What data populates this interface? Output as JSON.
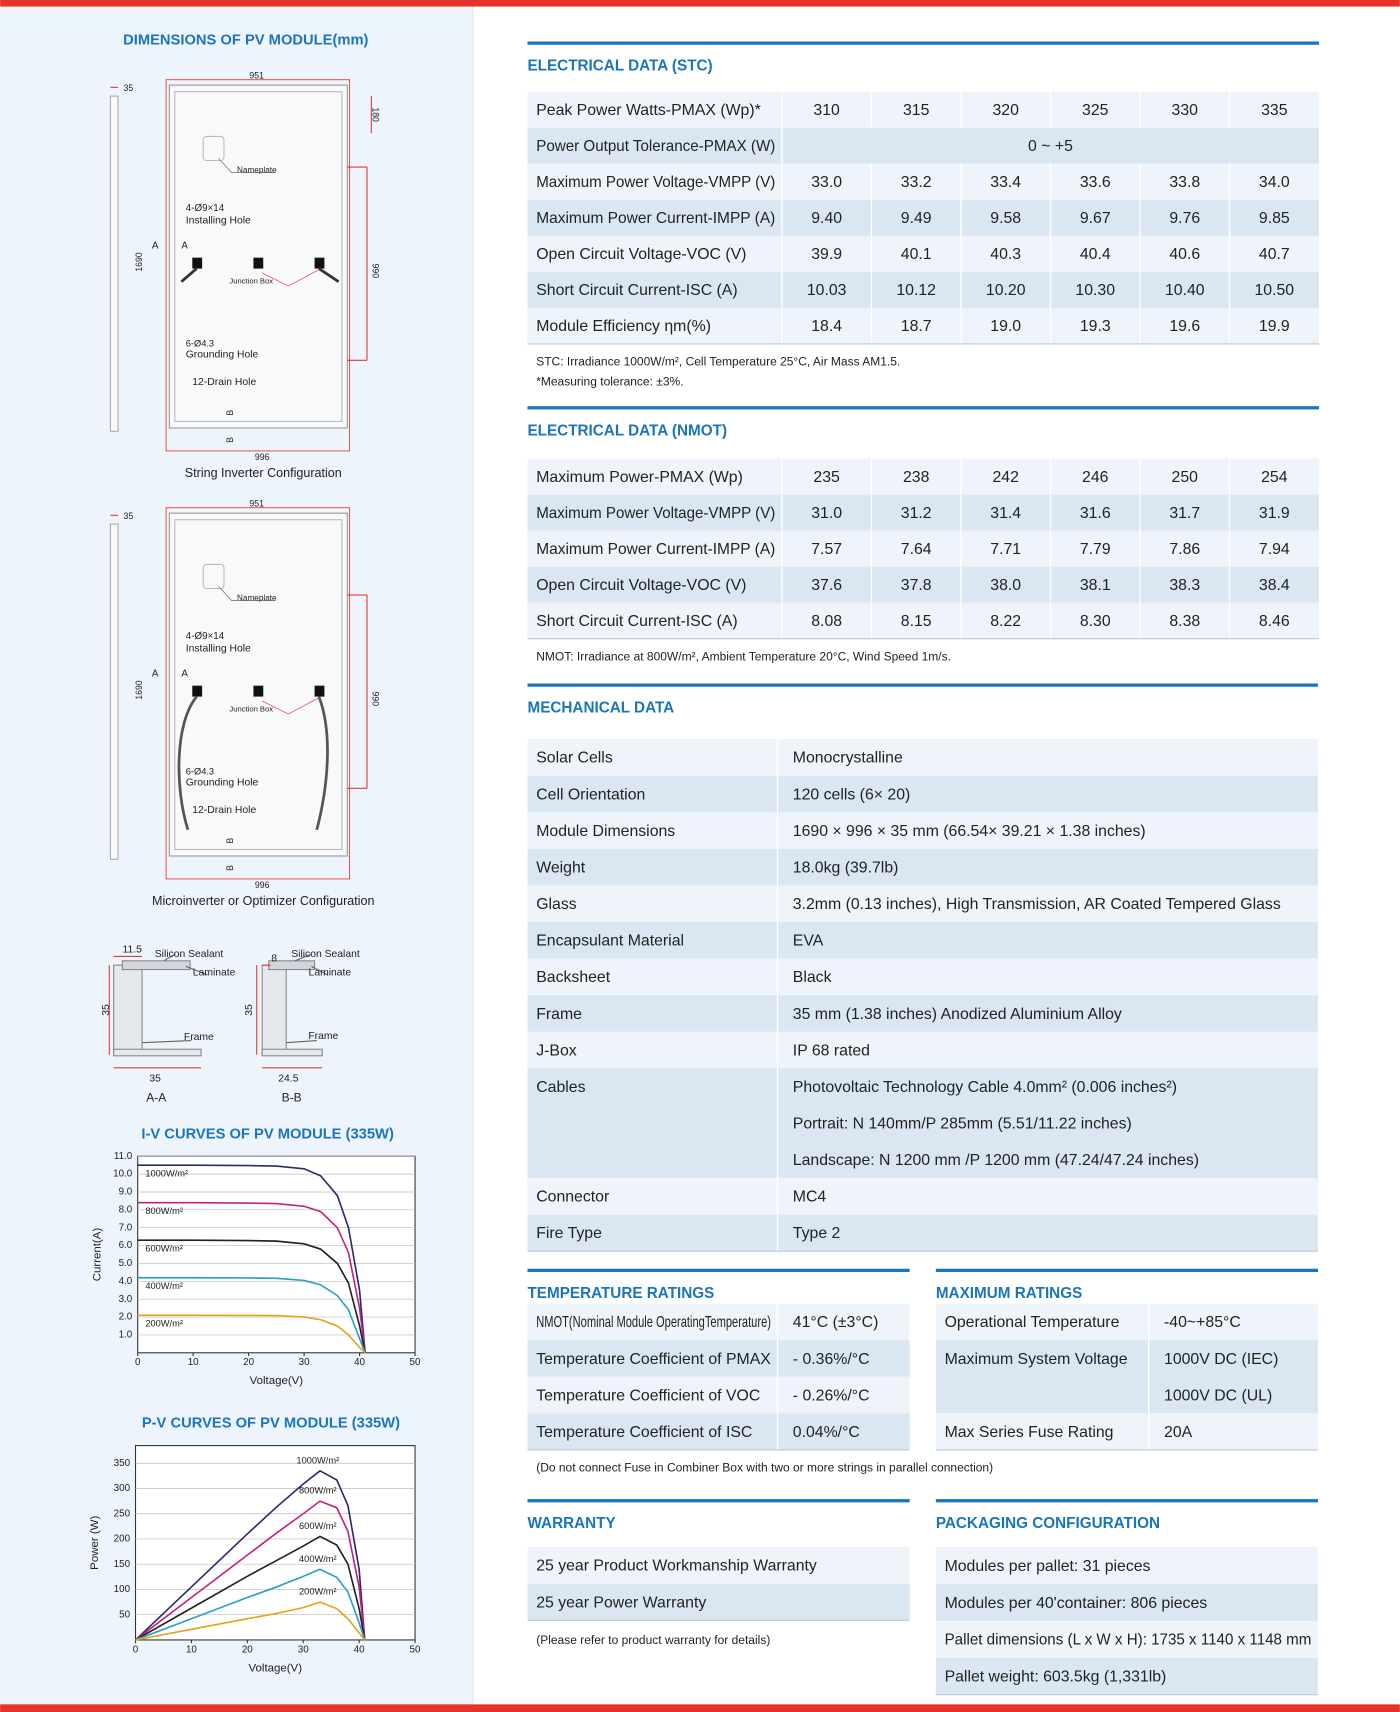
{
  "left_title": "DIMENSIONS OF PV MODULE(mm)",
  "diagrams": [
    {
      "thickness": "35",
      "width_top": "951",
      "nameplate_dim": "180",
      "nameplate": "Nameplate",
      "holes": "4-Ø9×14",
      "holes_name": "Installing  Hole",
      "section_a1": "A",
      "section_a2": "A",
      "length": "1690",
      "hole_pitch": "990",
      "junction_box": "Junction Box",
      "ground": "6-Ø4.3",
      "ground_name": "Grounding Hole",
      "drain": "12-Drain Hole",
      "section_b1": "B",
      "section_b2": "B",
      "width_bottom": "996",
      "caption": "String Inverter Configuration"
    },
    {
      "thickness": "35",
      "width_top": "951",
      "nameplate": "Nameplate",
      "holes": "4-Ø9×14",
      "holes_name": "Installing  Hole",
      "section_a1": "A",
      "section_a2": "A",
      "length": "1690",
      "hole_pitch": "990",
      "junction_box": "Junction Box",
      "ground": "6-Ø4.3",
      "ground_name": "Grounding Hole",
      "drain": "12-Drain Hole",
      "section_b1": "B",
      "section_b2": "B",
      "width_bottom": "996",
      "caption": "Microinverter or Optimizer Configuration"
    }
  ],
  "sections": [
    {
      "width": "11.5",
      "sealant": "Silicon Sealant",
      "laminate": "Laminate",
      "height": "35",
      "frame": "Frame",
      "flange": "35",
      "caption": "A-A"
    },
    {
      "width": "8",
      "sealant": "Silicon Sealant",
      "laminate": "Laminate",
      "height": "35",
      "frame": "Frame",
      "flange": "24.5",
      "caption": "B-B"
    }
  ],
  "chart_data": [
    {
      "type": "line",
      "title": "I-V CURVES OF PV MODULE (335W)",
      "x_label": "Voltage(V)",
      "y_label": "Current(A)",
      "x": [
        0,
        10,
        20,
        25,
        30,
        33,
        36,
        38,
        40,
        41
      ],
      "xlim": [
        0,
        50
      ],
      "xticks": [
        0,
        10,
        20,
        30,
        40,
        50
      ],
      "ylim": [
        0,
        11
      ],
      "yticks": [
        {
          "value": 1,
          "label": "1.0"
        },
        {
          "value": 2,
          "label": "2.0"
        },
        {
          "value": 3,
          "label": "3.0"
        },
        {
          "value": 4,
          "label": "4.0"
        },
        {
          "value": 5,
          "label": "5.0"
        },
        {
          "value": 6,
          "label": "6.0"
        },
        {
          "value": 7,
          "label": "7.0"
        },
        {
          "value": 8,
          "label": "8.0"
        },
        {
          "value": 9,
          "label": "9.0"
        },
        {
          "value": 10,
          "label": "10.0"
        },
        {
          "value": 11,
          "label": "11.0"
        }
      ],
      "grid": "y",
      "series": [
        {
          "name": "1000W/m²",
          "color": "#2b2a6e",
          "values": [
            10.5,
            10.5,
            10.48,
            10.45,
            10.3,
            9.9,
            8.8,
            7.0,
            3.5,
            0
          ]
        },
        {
          "name": "800W/m²",
          "color": "#c2237f",
          "values": [
            8.4,
            8.4,
            8.38,
            8.35,
            8.2,
            7.9,
            7.0,
            5.6,
            2.5,
            0
          ]
        },
        {
          "name": "600W/m²",
          "color": "#222222",
          "values": [
            6.3,
            6.3,
            6.28,
            6.25,
            6.1,
            5.8,
            5.0,
            3.9,
            1.5,
            0
          ]
        },
        {
          "name": "400W/m²",
          "color": "#2aa0c8",
          "values": [
            4.2,
            4.2,
            4.19,
            4.17,
            4.05,
            3.8,
            3.2,
            2.4,
            0.8,
            0
          ]
        },
        {
          "name": "200W/m²",
          "color": "#e8a21a",
          "values": [
            2.1,
            2.1,
            2.09,
            2.08,
            2.0,
            1.85,
            1.5,
            1.0,
            0.3,
            0
          ]
        }
      ]
    },
    {
      "type": "line",
      "title": "P-V CURVES OF PV MODULE (335W)",
      "x_label": "Voltage(V)",
      "y_label": "Power (W)",
      "x": [
        0,
        10,
        20,
        25,
        30,
        33,
        36,
        38,
        40,
        41
      ],
      "xlim": [
        0,
        50
      ],
      "xticks": [
        0,
        10,
        20,
        30,
        40,
        50
      ],
      "ylim": [
        0,
        385
      ],
      "yticks": [
        50,
        100,
        150,
        200,
        250,
        300,
        350
      ],
      "grid": "y",
      "series": [
        {
          "name": "1000W/m²",
          "color": "#2b2a6e",
          "values": [
            0,
            105,
            210,
            261,
            309,
            335,
            317,
            266,
            140,
            0
          ]
        },
        {
          "name": "800W/m²",
          "color": "#c2237f",
          "values": [
            0,
            84,
            168,
            210,
            250,
            275,
            262,
            215,
            105,
            0
          ]
        },
        {
          "name": "600W/m²",
          "color": "#222222",
          "values": [
            0,
            63,
            126,
            156,
            186,
            205,
            188,
            150,
            62,
            0
          ]
        },
        {
          "name": "400W/m²",
          "color": "#2aa0c8",
          "values": [
            0,
            42,
            84,
            104,
            126,
            140,
            124,
            95,
            34,
            0
          ]
        },
        {
          "name": "200W/m²",
          "color": "#e8a21a",
          "values": [
            0,
            21,
            42,
            52,
            64,
            75,
            62,
            42,
            14,
            0
          ]
        }
      ]
    }
  ],
  "stc": {
    "title": "ELECTRICAL DATA (STC)",
    "rows": [
      [
        "Peak Power Watts-PMAX (Wp)*",
        "310",
        "315",
        "320",
        "325",
        "330",
        "335"
      ],
      [
        "Power Output Tolerance-PMAX (W)",
        "0 ~ +5"
      ],
      [
        "Maximum Power Voltage-VMPP (V)",
        "33.0",
        "33.2",
        "33.4",
        "33.6",
        "33.8",
        "34.0"
      ],
      [
        "Maximum Power Current-IMPP (A)",
        "9.40",
        "9.49",
        "9.58",
        "9.67",
        "9.76",
        "9.85"
      ],
      [
        "Open Circuit Voltage-VOC (V)",
        "39.9",
        "40.1",
        "40.3",
        "40.4",
        "40.6",
        "40.7"
      ],
      [
        "Short Circuit Current-ISC (A)",
        "10.03",
        "10.12",
        "10.20",
        "10.30",
        "10.40",
        "10.50"
      ],
      [
        "Module Efficiency ηm(%)",
        "18.4",
        "18.7",
        "19.0",
        "19.3",
        "19.6",
        "19.9"
      ]
    ],
    "notes": [
      "STC: Irradiance 1000W/m², Cell Temperature 25°C, Air Mass AM1.5.",
      "*Measuring tolerance: ±3%."
    ]
  },
  "nmot": {
    "title": "ELECTRICAL DATA (NMOT)",
    "rows": [
      [
        "Maximum Power-PMAX (Wp)",
        "235",
        "238",
        "242",
        "246",
        "250",
        "254"
      ],
      [
        "Maximum Power Voltage-VMPP (V)",
        "31.0",
        "31.2",
        "31.4",
        "31.6",
        "31.7",
        "31.9"
      ],
      [
        "Maximum Power Current-IMPP (A)",
        "7.57",
        "7.64",
        "7.71",
        "7.79",
        "7.86",
        "7.94"
      ],
      [
        "Open Circuit Voltage-VOC (V)",
        "37.6",
        "37.8",
        "38.0",
        "38.1",
        "38.3",
        "38.4"
      ],
      [
        "Short Circuit Current-ISC (A)",
        "8.08",
        "8.15",
        "8.22",
        "8.30",
        "8.38",
        "8.46"
      ]
    ],
    "notes": [
      "NMOT: Irradiance at 800W/m², Ambient Temperature 20°C, Wind Speed 1m/s."
    ]
  },
  "mechanical": {
    "title": "MECHANICAL DATA",
    "rows": [
      [
        "Solar Cells",
        "Monocrystalline"
      ],
      [
        "Cell Orientation",
        "120 cells (6× 20)"
      ],
      [
        "Module Dimensions",
        "1690 × 996 × 35 mm (66.54× 39.21 × 1.38  inches)"
      ],
      [
        "Weight",
        "18.0kg (39.7lb)"
      ],
      [
        "Glass",
        "3.2mm (0.13 inches), High Transmission, AR Coated Tempered Glass"
      ],
      [
        "Encapsulant Material",
        "EVA"
      ],
      [
        "Backsheet",
        "Black"
      ],
      [
        "Frame",
        "35 mm (1.38 inches) Anodized Aluminium Alloy"
      ],
      [
        "J-Box",
        "IP 68 rated"
      ],
      [
        "Cables",
        [
          "Photovoltaic Technology Cable 4.0mm² (0.006 inches²)",
          "Portrait: N  140mm/P  285mm (5.51/11.22 inches)",
          "Landscape: N  1200 mm /P  1200 mm (47.24/47.24 inches)"
        ]
      ],
      [
        "Connector",
        "MC4"
      ],
      [
        "Fire Type",
        "Type 2"
      ]
    ]
  },
  "temperature": {
    "title": "TEMPERATURE RATINGS",
    "rows": [
      [
        "NMOT(Nominal Module OperatingTemperature)",
        "41°C (±3°C)"
      ],
      [
        "Temperature Coefficient of PMAX",
        "- 0.36%/°C"
      ],
      [
        "Temperature Coefficient of VOC",
        "- 0.26%/°C"
      ],
      [
        "Temperature Coefficient of ISC",
        "0.04%/°C"
      ]
    ],
    "notes": [
      "(Do not connect Fuse in Combiner Box with two or more strings in  parallel connection)"
    ]
  },
  "maximum": {
    "title": "MAXIMUM RATINGS",
    "rows": [
      [
        "Operational Temperature",
        "-40~+85°C"
      ],
      [
        "Maximum System Voltage",
        [
          "1000V DC (IEC)",
          "1000V DC (UL)"
        ]
      ],
      [
        "Max Series Fuse Rating",
        "20A"
      ]
    ]
  },
  "warranty": {
    "title": "WARRANTY",
    "rows": [
      [
        "25 year Product Workmanship Warranty"
      ],
      [
        "25 year Power Warranty"
      ]
    ],
    "notes": [
      "(Please refer to product warranty for details)"
    ]
  },
  "packaging": {
    "title": "PACKAGING CONFIGURATION",
    "rows": [
      [
        "Modules per pallet: 31 pieces"
      ],
      [
        "Modules per 40'container: 806 pieces"
      ],
      [
        "Pallet dimensions (L x W x H): 1735 x 1140 x 1148 mm"
      ],
      [
        "Pallet weight: 603.5kg (1,331lb)"
      ]
    ]
  }
}
